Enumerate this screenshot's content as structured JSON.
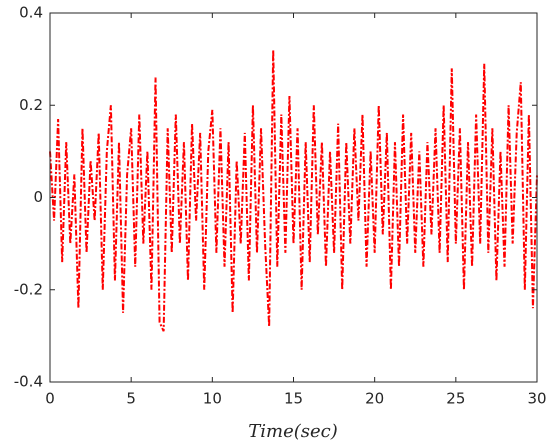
{
  "chart_data": {
    "type": "line",
    "xlabel": "Time(sec)",
    "x": [
      0,
      0.25,
      0.5,
      0.75,
      1,
      1.25,
      1.5,
      1.75,
      2,
      2.25,
      2.5,
      2.75,
      3,
      3.25,
      3.5,
      3.75,
      4,
      4.25,
      4.5,
      4.75,
      5,
      5.25,
      5.5,
      5.75,
      6,
      6.25,
      6.5,
      6.75,
      7,
      7.25,
      7.5,
      7.75,
      8,
      8.25,
      8.5,
      8.75,
      9,
      9.25,
      9.5,
      9.75,
      10,
      10.25,
      10.5,
      10.75,
      11,
      11.25,
      11.5,
      11.75,
      12,
      12.25,
      12.5,
      12.75,
      13,
      13.25,
      13.5,
      13.75,
      14,
      14.25,
      14.5,
      14.75,
      15,
      15.25,
      15.5,
      15.75,
      16,
      16.25,
      16.5,
      16.75,
      17,
      17.25,
      17.5,
      17.75,
      18,
      18.25,
      18.5,
      18.75,
      19,
      19.25,
      19.5,
      19.75,
      20,
      20.25,
      20.5,
      20.75,
      21,
      21.25,
      21.5,
      21.75,
      22,
      22.25,
      22.5,
      22.75,
      23,
      23.25,
      23.5,
      23.75,
      24,
      24.25,
      24.5,
      24.75,
      25,
      25.25,
      25.5,
      25.75,
      26,
      26.25,
      26.5,
      26.75,
      27,
      27.25,
      27.5,
      27.75,
      28,
      28.25,
      28.5,
      28.75,
      29,
      29.25,
      29.5,
      29.75,
      30
    ],
    "series": [
      {
        "color": "#ff0000",
        "values": [
          0.1,
          -0.05,
          0.17,
          -0.14,
          0.12,
          -0.1,
          0.05,
          -0.24,
          0.15,
          -0.12,
          0.08,
          -0.05,
          0.14,
          -0.2,
          0.1,
          0.2,
          -0.18,
          0.12,
          -0.25,
          0.05,
          0.15,
          -0.15,
          0.18,
          -0.1,
          0.1,
          -0.2,
          0.26,
          -0.27,
          -0.29,
          0.15,
          -0.12,
          0.18,
          -0.1,
          0.12,
          -0.18,
          0.16,
          -0.05,
          0.14,
          -0.2,
          0.1,
          0.19,
          -0.12,
          0.15,
          -0.15,
          0.12,
          -0.25,
          0.08,
          -0.1,
          0.14,
          -0.18,
          0.2,
          -0.12,
          0.15,
          -0.1,
          -0.28,
          0.32,
          -0.15,
          0.18,
          -0.12,
          0.22,
          -0.1,
          0.15,
          -0.2,
          0.12,
          -0.14,
          0.2,
          -0.08,
          0.12,
          -0.15,
          0.1,
          -0.12,
          0.16,
          -0.2,
          0.12,
          -0.1,
          0.15,
          -0.05,
          0.18,
          -0.15,
          0.1,
          -0.12,
          0.2,
          -0.08,
          0.14,
          -0.2,
          0.12,
          -0.15,
          0.18,
          -0.1,
          0.14,
          -0.12,
          0.1,
          -0.15,
          0.12,
          -0.08,
          0.15,
          -0.12,
          0.2,
          -0.14,
          0.28,
          -0.1,
          0.15,
          -0.2,
          0.12,
          -0.15,
          0.18,
          -0.1,
          0.29,
          -0.12,
          0.15,
          -0.18,
          0.1,
          -0.15,
          0.2,
          -0.1,
          0.14,
          0.25,
          -0.2,
          0.18,
          -0.24,
          0.05
        ]
      }
    ],
    "xlim": [
      0,
      30
    ],
    "xticks": [
      0,
      5,
      10,
      15,
      20,
      25,
      30
    ],
    "ylim": [
      -0.4,
      0.4
    ],
    "yticks": [
      -0.4,
      -0.2,
      0,
      0.2,
      0.4
    ]
  }
}
